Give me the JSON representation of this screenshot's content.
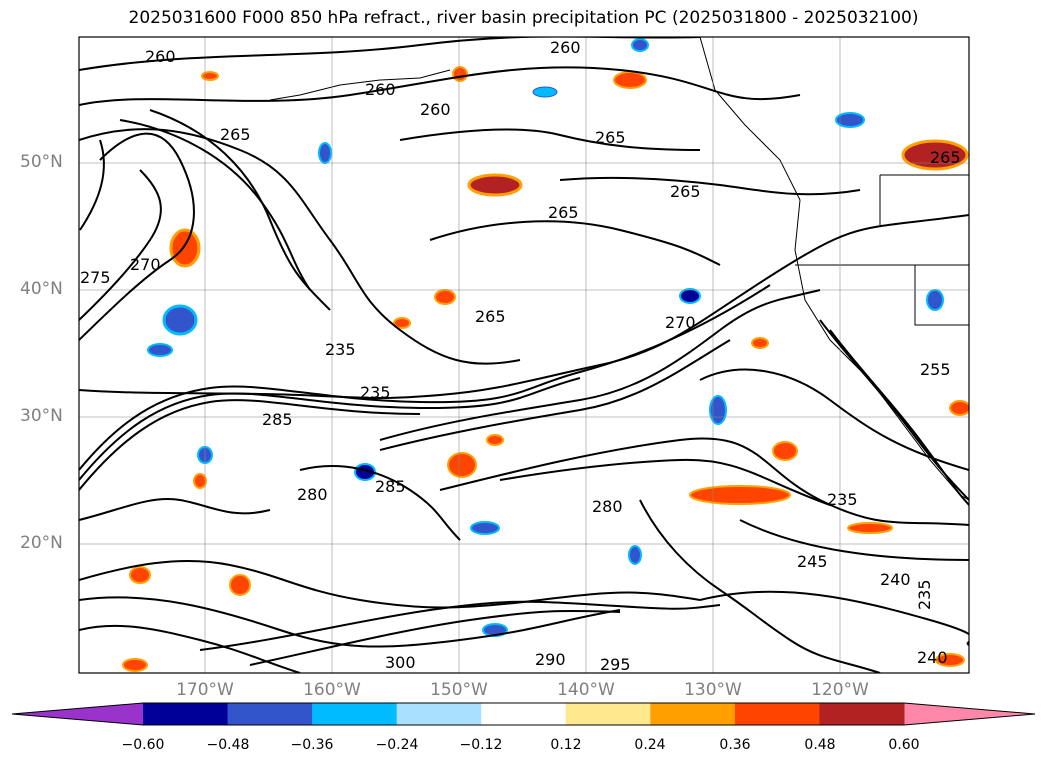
{
  "title": "2025031600 F000 850 hPa refract., river basin precipitation PC (2025031800 - 2025032100)",
  "lat_labels": [
    "50°N",
    "40°N",
    "30°N",
    "20°N"
  ],
  "lon_labels": [
    "170°W",
    "160°W",
    "150°W",
    "140°W",
    "130°W",
    "120°W"
  ],
  "contour_labels": [
    {
      "text": "260"
    },
    {
      "text": "260"
    },
    {
      "text": "260"
    },
    {
      "text": "260"
    },
    {
      "text": "265"
    },
    {
      "text": "265"
    },
    {
      "text": "265"
    },
    {
      "text": "265"
    },
    {
      "text": "265"
    },
    {
      "text": "265"
    },
    {
      "text": "270"
    },
    {
      "text": "270"
    },
    {
      "text": "275"
    },
    {
      "text": "235"
    },
    {
      "text": "235"
    },
    {
      "text": "285"
    },
    {
      "text": "280"
    },
    {
      "text": "285"
    },
    {
      "text": "245"
    },
    {
      "text": "240"
    },
    {
      "text": "235"
    },
    {
      "text": "240"
    },
    {
      "text": "235"
    },
    {
      "text": "255"
    },
    {
      "text": "290"
    },
    {
      "text": "295"
    },
    {
      "text": "300"
    },
    {
      "text": "280"
    }
  ],
  "colorbar": {
    "colors": [
      "#9933cc",
      "#000099",
      "#3355cc",
      "#00bbff",
      "#aae0ff",
      "#ffffff",
      "#ffe98c",
      "#ffa000",
      "#ff4400",
      "#b22222",
      "#ff88aa"
    ],
    "ticks": [
      "−0.60",
      "−0.48",
      "−0.36",
      "−0.24",
      "−0.12",
      "0.12",
      "0.24",
      "0.36",
      "0.48",
      "0.60"
    ]
  }
}
